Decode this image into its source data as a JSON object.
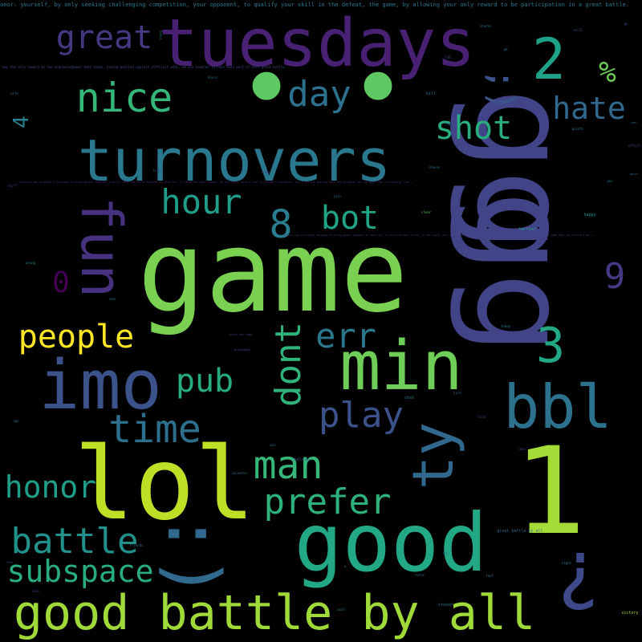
{
  "cloud": {
    "words": [
      {
        "id": "gg-top",
        "text": "gg",
        "color": "#414487"
      },
      {
        "id": "gg-bottom",
        "text": "gg",
        "color": "#414487"
      },
      {
        "id": "game",
        "text": "game",
        "color": "#7ad151"
      },
      {
        "id": "lol",
        "text": "lol",
        "color": "#bddf26"
      },
      {
        "id": "one",
        "text": "1",
        "color": "#a5db36"
      },
      {
        "id": "good",
        "text": "good",
        "color": "#22a884"
      },
      {
        "id": "tuesdays",
        "text": "tuesdays",
        "color": "#482173"
      },
      {
        "id": "turnovers",
        "text": "turnovers",
        "color": "#2a788e"
      },
      {
        "id": "min",
        "text": "min",
        "color": "#6ece58"
      },
      {
        "id": "imo",
        "text": "imo",
        "color": "#3b528b"
      },
      {
        "id": "bbl",
        "text": "bbl",
        "color": "#2c728e"
      },
      {
        "id": "two",
        "text": "2",
        "color": "#1fa088"
      },
      {
        "id": "dot-left",
        "text": "•",
        "color": "#5ec962"
      },
      {
        "id": "dot-right",
        "text": "•",
        "color": "#5ec962"
      },
      {
        "id": "smile",
        "text": ":)",
        "color": "#31688e"
      },
      {
        "id": "question",
        "text": "?",
        "color": "#3e4989"
      },
      {
        "id": "fun",
        "text": "fun",
        "color": "#46327e"
      },
      {
        "id": "ty",
        "text": "ty",
        "color": "#31688e"
      },
      {
        "id": "good-battle-by-all",
        "text": "good battle by all",
        "color": "#a0da39"
      },
      {
        "id": "great",
        "text": "great",
        "color": "#443a83"
      },
      {
        "id": "nice",
        "text": "nice",
        "color": "#35b779"
      },
      {
        "id": "day",
        "text": "day",
        "color": "#2c728e"
      },
      {
        "id": "wink",
        "text": ";)",
        "color": "#3b528b"
      },
      {
        "id": "percent",
        "text": "%",
        "color": "#6ece58"
      },
      {
        "id": "hate",
        "text": "hate",
        "color": "#31688e"
      },
      {
        "id": "shot",
        "text": "shot",
        "color": "#29af7f"
      },
      {
        "id": "four",
        "text": "4",
        "color": "#26828e"
      },
      {
        "id": "hour",
        "text": "hour",
        "color": "#1f9e89"
      },
      {
        "id": "eight",
        "text": "8",
        "color": "#287d8e"
      },
      {
        "id": "bot",
        "text": "bot",
        "color": "#20a486"
      },
      {
        "id": "zero",
        "text": "0",
        "color": "#440154"
      },
      {
        "id": "nine",
        "text": "9",
        "color": "#443983"
      },
      {
        "id": "three",
        "text": "3",
        "color": "#22a884"
      },
      {
        "id": "err",
        "text": "err",
        "color": "#2a788e"
      },
      {
        "id": "people",
        "text": "people",
        "color": "#fde725"
      },
      {
        "id": "dont",
        "text": "dont",
        "color": "#2fb47c"
      },
      {
        "id": "pub",
        "text": "pub",
        "color": "#25ac82"
      },
      {
        "id": "play",
        "text": "play",
        "color": "#3b528b"
      },
      {
        "id": "time",
        "text": "time",
        "color": "#2d708e"
      },
      {
        "id": "man",
        "text": "man",
        "color": "#35b779"
      },
      {
        "id": "prefer",
        "text": "prefer",
        "color": "#2db27d"
      },
      {
        "id": "honor",
        "text": "honor",
        "color": "#1f9e89"
      },
      {
        "id": "battle",
        "text": "battle",
        "color": "#21918c"
      },
      {
        "id": "subspace",
        "text": "subspace",
        "color": "#27ad81"
      },
      {
        "id": "header-text",
        "text": "honor: yourself, by only seeking challenging competition, your opponent, to qualify your skill in the defeat, the game, by allowing your only reward to be participation in a great battle.",
        "color": "#2a788e"
      },
      {
        "id": "line-acknowledgment",
        "text": "may the only reward be the acknowledgment that today, having battled against difficult odds, we are honored to have been part of this great battle.",
        "color": "#3e4989"
      },
      {
        "id": "line-subspace-1",
        "text": "subspace was originally designed to bring people together from all over the world together to have fun. it since has been ruined, by the users. only a tool to spread frustration. so if you are getting bent easily about how the game then its working fine :)",
        "color": "#482878"
      },
      {
        "id": "line-subspace-2",
        "text": "subspace was originally designed to bring people together to have fun. it since has been ruined, by the users. only a tool to spread frustration. so if you are getting frustrated by the game then its working fine :)",
        "color": "#3e4989"
      },
      {
        "id": "tiny-honor",
        "text": "honor",
        "color": "#26828e"
      },
      {
        "id": "tiny-wife",
        "text": "wife",
        "color": "#31688e"
      },
      {
        "id": "tiny-kill",
        "text": "kill",
        "color": "#2c728e"
      },
      {
        "id": "tiny-hours",
        "text": "hours",
        "color": "#2a788e"
      },
      {
        "id": "tiny-skill",
        "text": "skill",
        "color": "#3b528b"
      },
      {
        "id": "tiny-lol",
        "text": "lol",
        "color": "#414487"
      },
      {
        "id": "tiny-sharks",
        "text": "sharks",
        "color": "#2d708e"
      },
      {
        "id": "tiny-happy",
        "text": "happy",
        "color": "#21918c"
      },
      {
        "id": "tiny-terrier",
        "text": "terrier",
        "color": "#20a486"
      },
      {
        "id": "tiny-clear",
        "text": "clear",
        "color": "#5ec962"
      },
      {
        "id": "tiny-chat",
        "text": "chat",
        "color": "#2a788e"
      },
      {
        "id": "tiny-challenge",
        "text": "challenge",
        "color": "#31688e"
      },
      {
        "id": "tiny-choose",
        "text": "choose",
        "color": "#2c728e"
      },
      {
        "id": "tiny-today",
        "text": "today",
        "color": "#26828e"
      },
      {
        "id": "tiny-stoned",
        "text": "stoned",
        "color": "#2c728e"
      },
      {
        "id": "tiny-victory",
        "text": "victory",
        "color": "#a0da39"
      },
      {
        "id": "tiny-great-battle",
        "text": "great battle by all",
        "color": "#31688e"
      },
      {
        "id": "tiny-sorry",
        "text": "sorry for caps",
        "color": "#414487"
      },
      {
        "id": "tiny-points",
        "text": "points",
        "color": "#2a788e"
      },
      {
        "id": "tiny-attachment",
        "text": "attachment",
        "color": "#3e4989"
      },
      {
        "id": "tiny-universe",
        "text": "universe",
        "color": "#2c728e"
      },
      {
        "id": "tiny-wrong",
        "text": "wrong",
        "color": "#26828e"
      },
      {
        "id": "tiny-stuff",
        "text": "stuff",
        "color": "#443983"
      },
      {
        "id": "tiny-high",
        "text": "high",
        "color": "#3b528b"
      },
      {
        "id": "tiny-night",
        "text": "night",
        "color": "#2c728e"
      },
      {
        "id": "tiny-real",
        "text": "real",
        "color": "#31688e"
      },
      {
        "id": "tiny-effect",
        "text": "effect",
        "color": "#414487"
      },
      {
        "id": "tiny-mod",
        "text": "mod",
        "color": "#2a788e"
      },
      {
        "id": "tiny-damn",
        "text": "damn",
        "color": "#3e4989"
      },
      {
        "id": "tiny-point",
        "text": "point",
        "color": "#31688e"
      },
      {
        "id": "tiny-rules",
        "text": "rules",
        "color": "#2c728e"
      },
      {
        "id": "tiny-lag",
        "text": "lag",
        "color": "#26828e"
      },
      {
        "id": "tiny-free",
        "text": "free",
        "color": "#3b528b"
      },
      {
        "id": "tiny-fast",
        "text": "fast",
        "color": "#2a788e"
      },
      {
        "id": "tiny-friends",
        "text": "friends",
        "color": "#31688e"
      },
      {
        "id": "tiny-live",
        "text": "live",
        "color": "#443983"
      },
      {
        "id": "tiny-yes",
        "text": "yes",
        "color": "#2c728e"
      },
      {
        "id": "tiny-hope",
        "text": "hope",
        "color": "#3b528b"
      },
      {
        "id": "tiny-wait",
        "text": "wait",
        "color": "#2a788e"
      },
      {
        "id": "tiny-sure",
        "text": "sure",
        "color": "#31688e"
      },
      {
        "id": "tiny-told",
        "text": "told",
        "color": "#3e4989"
      },
      {
        "id": "tiny-win",
        "text": "win",
        "color": "#2c728e"
      },
      {
        "id": "tiny-lose",
        "text": "lose",
        "color": "#414487"
      },
      {
        "id": "tiny-join",
        "text": "join",
        "color": "#2a788e"
      },
      {
        "id": "tiny-ugh",
        "text": "ugh",
        "color": "#31688e"
      },
      {
        "id": "tiny-gn",
        "text": "gn",
        "color": "#3b528b"
      },
      {
        "id": "tiny-pm",
        "text": "pm",
        "color": "#2c728e"
      },
      {
        "id": "tiny-u",
        "text": "u",
        "color": "#26828e"
      }
    ]
  }
}
